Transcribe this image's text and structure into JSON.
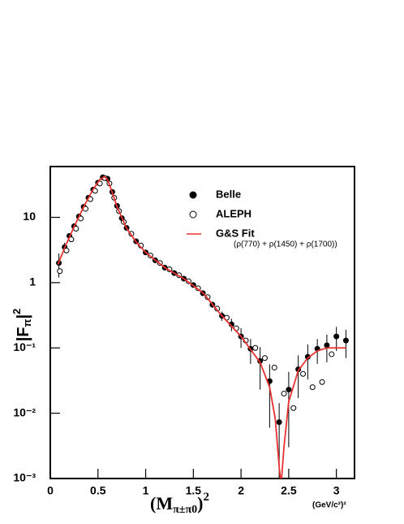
{
  "chart_data": {
    "type": "scatter",
    "y_label": {
      "base": "|F",
      "sub": "π",
      "close": "|",
      "sup": "2"
    },
    "x_label": {
      "base": "(M",
      "sub": "π±π0",
      "close": ")",
      "sup": "2"
    },
    "x_unit": "(GeV/c²)²",
    "annotation": "(ρ(770) + ρ(1450) + ρ(1700))",
    "xlim": [
      0,
      3.19
    ],
    "ylim": [
      0.001,
      60
    ],
    "log_y": true,
    "xticks": [
      0,
      0.5,
      1,
      1.5,
      2,
      2.5,
      3
    ],
    "yticks": [
      {
        "value": 0.001,
        "label": "10⁻³"
      },
      {
        "value": 0.01,
        "label": "10⁻²"
      },
      {
        "value": 0.1,
        "label": "10⁻¹"
      },
      1,
      10
    ],
    "legend": "upper right",
    "series": [
      {
        "name": "Belle",
        "color": "#000000",
        "marker": "filled",
        "x": [
          0.09,
          0.15,
          0.2,
          0.25,
          0.3,
          0.35,
          0.4,
          0.45,
          0.5,
          0.55,
          0.6,
          0.65,
          0.7,
          0.75,
          0.8,
          0.9,
          1.0,
          1.1,
          1.2,
          1.3,
          1.4,
          1.5,
          1.6,
          1.7,
          1.8,
          1.9,
          2.0,
          2.1,
          2.2,
          2.3,
          2.4,
          2.5,
          2.6,
          2.7,
          2.8,
          2.9,
          3.0,
          3.1
        ],
        "values": [
          2.0,
          3.5,
          5.2,
          7.3,
          10.3,
          14.5,
          20,
          26.6,
          34,
          41,
          39,
          24.5,
          15,
          9.7,
          6.9,
          4.3,
          2.9,
          2.2,
          1.7,
          1.4,
          1.15,
          0.92,
          0.69,
          0.46,
          0.31,
          0.23,
          0.15,
          0.097,
          0.063,
          0.031,
          0.0073,
          0.023,
          0.047,
          0.073,
          0.097,
          0.11,
          0.15,
          0.13
        ],
        "errors": [
          0.8,
          0.6,
          0.5,
          0.5,
          0.6,
          0.7,
          0.8,
          1,
          1,
          1.2,
          1.2,
          0.8,
          0.5,
          0.3,
          0.2,
          0.15,
          0.1,
          0.08,
          0.07,
          0.06,
          0.06,
          0.06,
          0.06,
          0.05,
          0.05,
          0.05,
          0.05,
          0.04,
          0.04,
          0.025,
          0.007,
          0.02,
          0.03,
          0.04,
          0.04,
          0.05,
          0.06,
          0.06
        ]
      },
      {
        "name": "ALEPH",
        "color": "#000000",
        "marker": "open",
        "x": [
          0.1,
          0.17,
          0.22,
          0.27,
          0.32,
          0.37,
          0.42,
          0.47,
          0.52,
          0.57,
          0.62,
          0.67,
          0.72,
          0.77,
          0.85,
          0.95,
          1.05,
          1.15,
          1.25,
          1.35,
          1.45,
          1.55,
          1.65,
          1.75,
          1.85,
          1.95,
          2.05,
          2.15,
          2.25,
          2.35,
          2.45,
          2.55,
          2.65,
          2.75,
          2.85,
          2.95
        ],
        "values": [
          1.5,
          3.1,
          4.6,
          6.7,
          9.6,
          13.5,
          19,
          25.5,
          33,
          40,
          33,
          20,
          12.5,
          8.5,
          5.6,
          3.7,
          2.6,
          2.0,
          1.6,
          1.3,
          1.05,
          0.82,
          0.6,
          0.4,
          0.29,
          0.2,
          0.13,
          0.1,
          0.07,
          0.05,
          0.02,
          0.012,
          0.04,
          0.025,
          0.03,
          0.08
        ]
      },
      {
        "name": "G&S Fit",
        "color": "#e8312f",
        "marker": "line",
        "x": [
          0.08,
          0.15,
          0.25,
          0.35,
          0.45,
          0.52,
          0.57,
          0.6,
          0.65,
          0.7,
          0.8,
          0.9,
          1.0,
          1.2,
          1.4,
          1.6,
          1.8,
          2.0,
          2.2,
          2.3,
          2.36,
          2.4,
          2.42,
          2.45,
          2.5,
          2.6,
          2.7,
          2.8,
          2.9,
          3.0,
          3.1
        ],
        "values": [
          1.9,
          3.4,
          7.2,
          14.5,
          27,
          38,
          42,
          38,
          24,
          14.5,
          6.8,
          4.2,
          2.9,
          1.7,
          1.15,
          0.7,
          0.31,
          0.15,
          0.06,
          0.025,
          0.008,
          0.0015,
          0.0008,
          0.003,
          0.015,
          0.045,
          0.07,
          0.09,
          0.1,
          0.1,
          0.1
        ]
      }
    ]
  }
}
